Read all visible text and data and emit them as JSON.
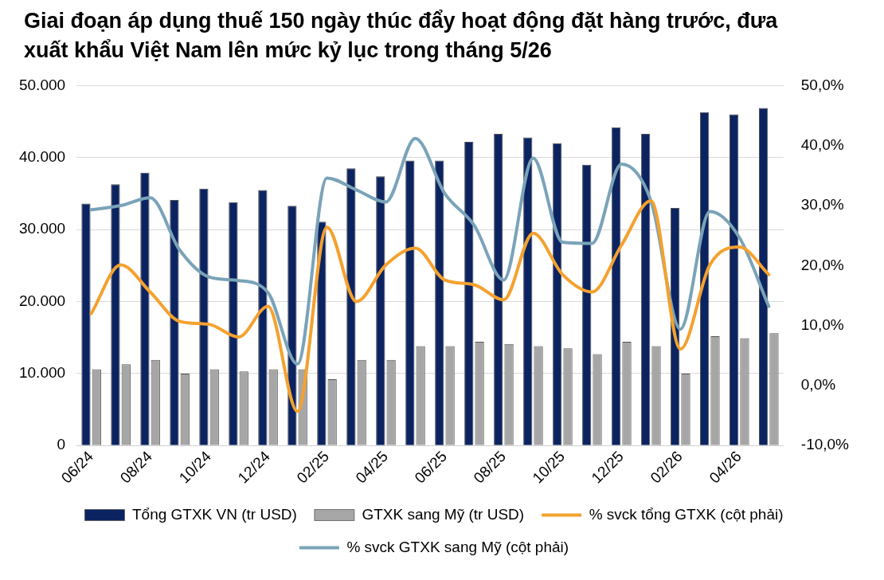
{
  "chart_data": {
    "type": "bar",
    "title": "Giai đoạn áp dụng thuế 150 ngày thúc đẩy hoạt động đặt hàng trước, đưa xuất khẩu Việt Nam lên mức kỷ lục trong tháng 5/26",
    "categories": [
      "06/24",
      null,
      "08/24",
      null,
      "10/24",
      null,
      "12/24",
      null,
      "02/25",
      null,
      "04/25",
      null,
      "06/25",
      null,
      "08/25",
      null,
      "10/25",
      null,
      "12/25",
      null,
      "02/26",
      null,
      "04/26",
      null
    ],
    "series": [
      {
        "name": "Tổng GTXK VN (tr USD)",
        "color": "#0b2360",
        "values": [
          33600,
          36300,
          37900,
          34100,
          35700,
          33800,
          35500,
          33300,
          31100,
          38500,
          37400,
          39600,
          39600,
          42200,
          43300,
          42800,
          42000,
          39000,
          44200,
          43300,
          33000,
          46300,
          46000,
          46900
        ]
      },
      {
        "name": "GTXK sang Mỹ (tr USD)",
        "color": "#a6a6a6",
        "values": [
          10600,
          11300,
          11900,
          10000,
          10600,
          10300,
          10600,
          10600,
          9200,
          11900,
          11900,
          13800,
          13800,
          14400,
          14100,
          13800,
          13500,
          12700,
          14400,
          13800,
          10000,
          15200,
          14900,
          15600
        ]
      },
      {
        "name": "% svck tổng GTXK (cột phải)",
        "type": "line",
        "axis": "y2",
        "color": "#f4a12f",
        "values": [
          12.0,
          20.1,
          15.6,
          10.7,
          10.2,
          8.1,
          13.2,
          -4.3,
          26.4,
          14.0,
          20.1,
          22.9,
          17.6,
          16.8,
          14.3,
          25.4,
          18.5,
          15.6,
          23.4,
          30.8,
          6.1,
          20.1,
          23.1,
          18.5
        ]
      },
      {
        "name": "% svck GTXK sang Mỹ (cột phải)",
        "type": "line",
        "axis": "y2",
        "color": "#7aa3b8",
        "values": [
          29.3,
          30.0,
          31.3,
          22.6,
          18.1,
          17.5,
          15.5,
          3.6,
          34.6,
          32.6,
          30.6,
          41.2,
          32.0,
          26.7,
          17.6,
          37.9,
          23.9,
          23.7,
          36.9,
          30.8,
          9.4,
          29.0,
          24.7,
          13.2
        ]
      }
    ],
    "ylim": [
      0,
      50000
    ],
    "yticks": [
      {
        "value": 0,
        "label": "0"
      },
      {
        "value": 10000,
        "label": "10.000"
      },
      {
        "value": 20000,
        "label": "20.000"
      },
      {
        "value": 30000,
        "label": "30.000"
      },
      {
        "value": 40000,
        "label": "40.000"
      },
      {
        "value": 50000,
        "label": "50.000"
      }
    ],
    "y2lim": [
      -10,
      50
    ],
    "y2ticks": [
      {
        "value": -10,
        "label": "-10,0%"
      },
      {
        "value": 0,
        "label": "0,0%"
      },
      {
        "value": 10,
        "label": "10,0%"
      },
      {
        "value": 20,
        "label": "20,0%"
      },
      {
        "value": 30,
        "label": "30,0%"
      },
      {
        "value": 40,
        "label": "40,0%"
      },
      {
        "value": 50,
        "label": "50,0%"
      }
    ],
    "grid": "y",
    "legend": "bottom",
    "marker": "none",
    "line_style": "solid"
  }
}
